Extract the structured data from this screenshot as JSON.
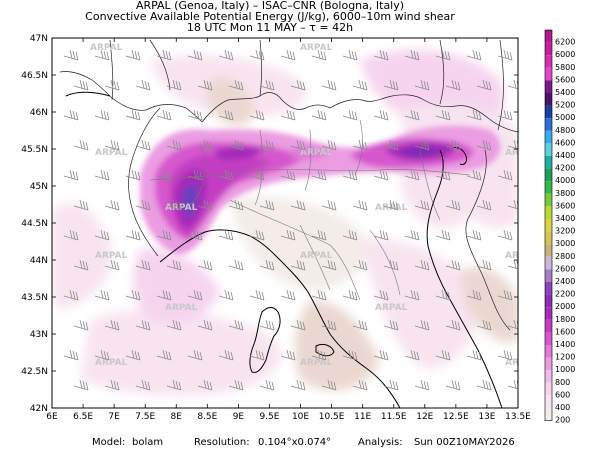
{
  "header": {
    "line1": "ARPAL (Genoa, Italy)  –  ISAC–CNR (Bologna, Italy)",
    "line2": "Convective Available Potential Energy (J/kg), 6000–10m wind shear",
    "line3": "18 UTC Mon 11 MAY  –  τ = 42h"
  },
  "map": {
    "lat_labels": [
      "47N",
      "46.5N",
      "46N",
      "45.5N",
      "45N",
      "44.5N",
      "44N",
      "43.5N",
      "43N",
      "42.5N",
      "42N"
    ],
    "lon_labels": [
      "6E",
      "6.5E",
      "7E",
      "7.5E",
      "8E",
      "8.5E",
      "9E",
      "9.5E",
      "10E",
      "10.5E",
      "11E",
      "11.5E",
      "12E",
      "12.5E",
      "13E",
      "13.5E"
    ],
    "watermark": "ARPAL"
  },
  "legend": {
    "levels": [
      "6200",
      "6000",
      "5800",
      "5600",
      "5400",
      "5200",
      "5000",
      "4800",
      "4600",
      "4400",
      "4200",
      "4000",
      "3800",
      "3600",
      "3400",
      "3200",
      "3000",
      "2800",
      "2600",
      "2400",
      "2200",
      "2000",
      "1800",
      "1600",
      "1400",
      "1200",
      "1000",
      "800",
      "600",
      "400",
      "200"
    ],
    "colors": [
      "#b21a8e",
      "#c61ea2",
      "#d82eb4",
      "#e347c6",
      "#7a1a8a",
      "#4a1566",
      "#1d3f9e",
      "#2a6fd6",
      "#3ea9e8",
      "#5fd0e0",
      "#1faf9e",
      "#1e9f5a",
      "#35b84a",
      "#7cc83c",
      "#b9d83a",
      "#d9d444",
      "#d7c25a",
      "#c8b17e",
      "#c9b8d8",
      "#a77ec6",
      "#8a43b8",
      "#8c2fb3",
      "#a52cb9",
      "#c33cc2",
      "#d657ce",
      "#e07cd8",
      "#eb9ce2",
      "#f2bbe9",
      "#f6d4ef",
      "#f8e4f0",
      "#f3ece8"
    ]
  },
  "footer": {
    "model_label": "Model:",
    "model_value": "bolam",
    "resolution_label": "Resolution:",
    "resolution_value": "0.104°x0.074°",
    "analysis_label": "Analysis:",
    "analysis_value": "Sun  00Z10MAY2026"
  }
}
